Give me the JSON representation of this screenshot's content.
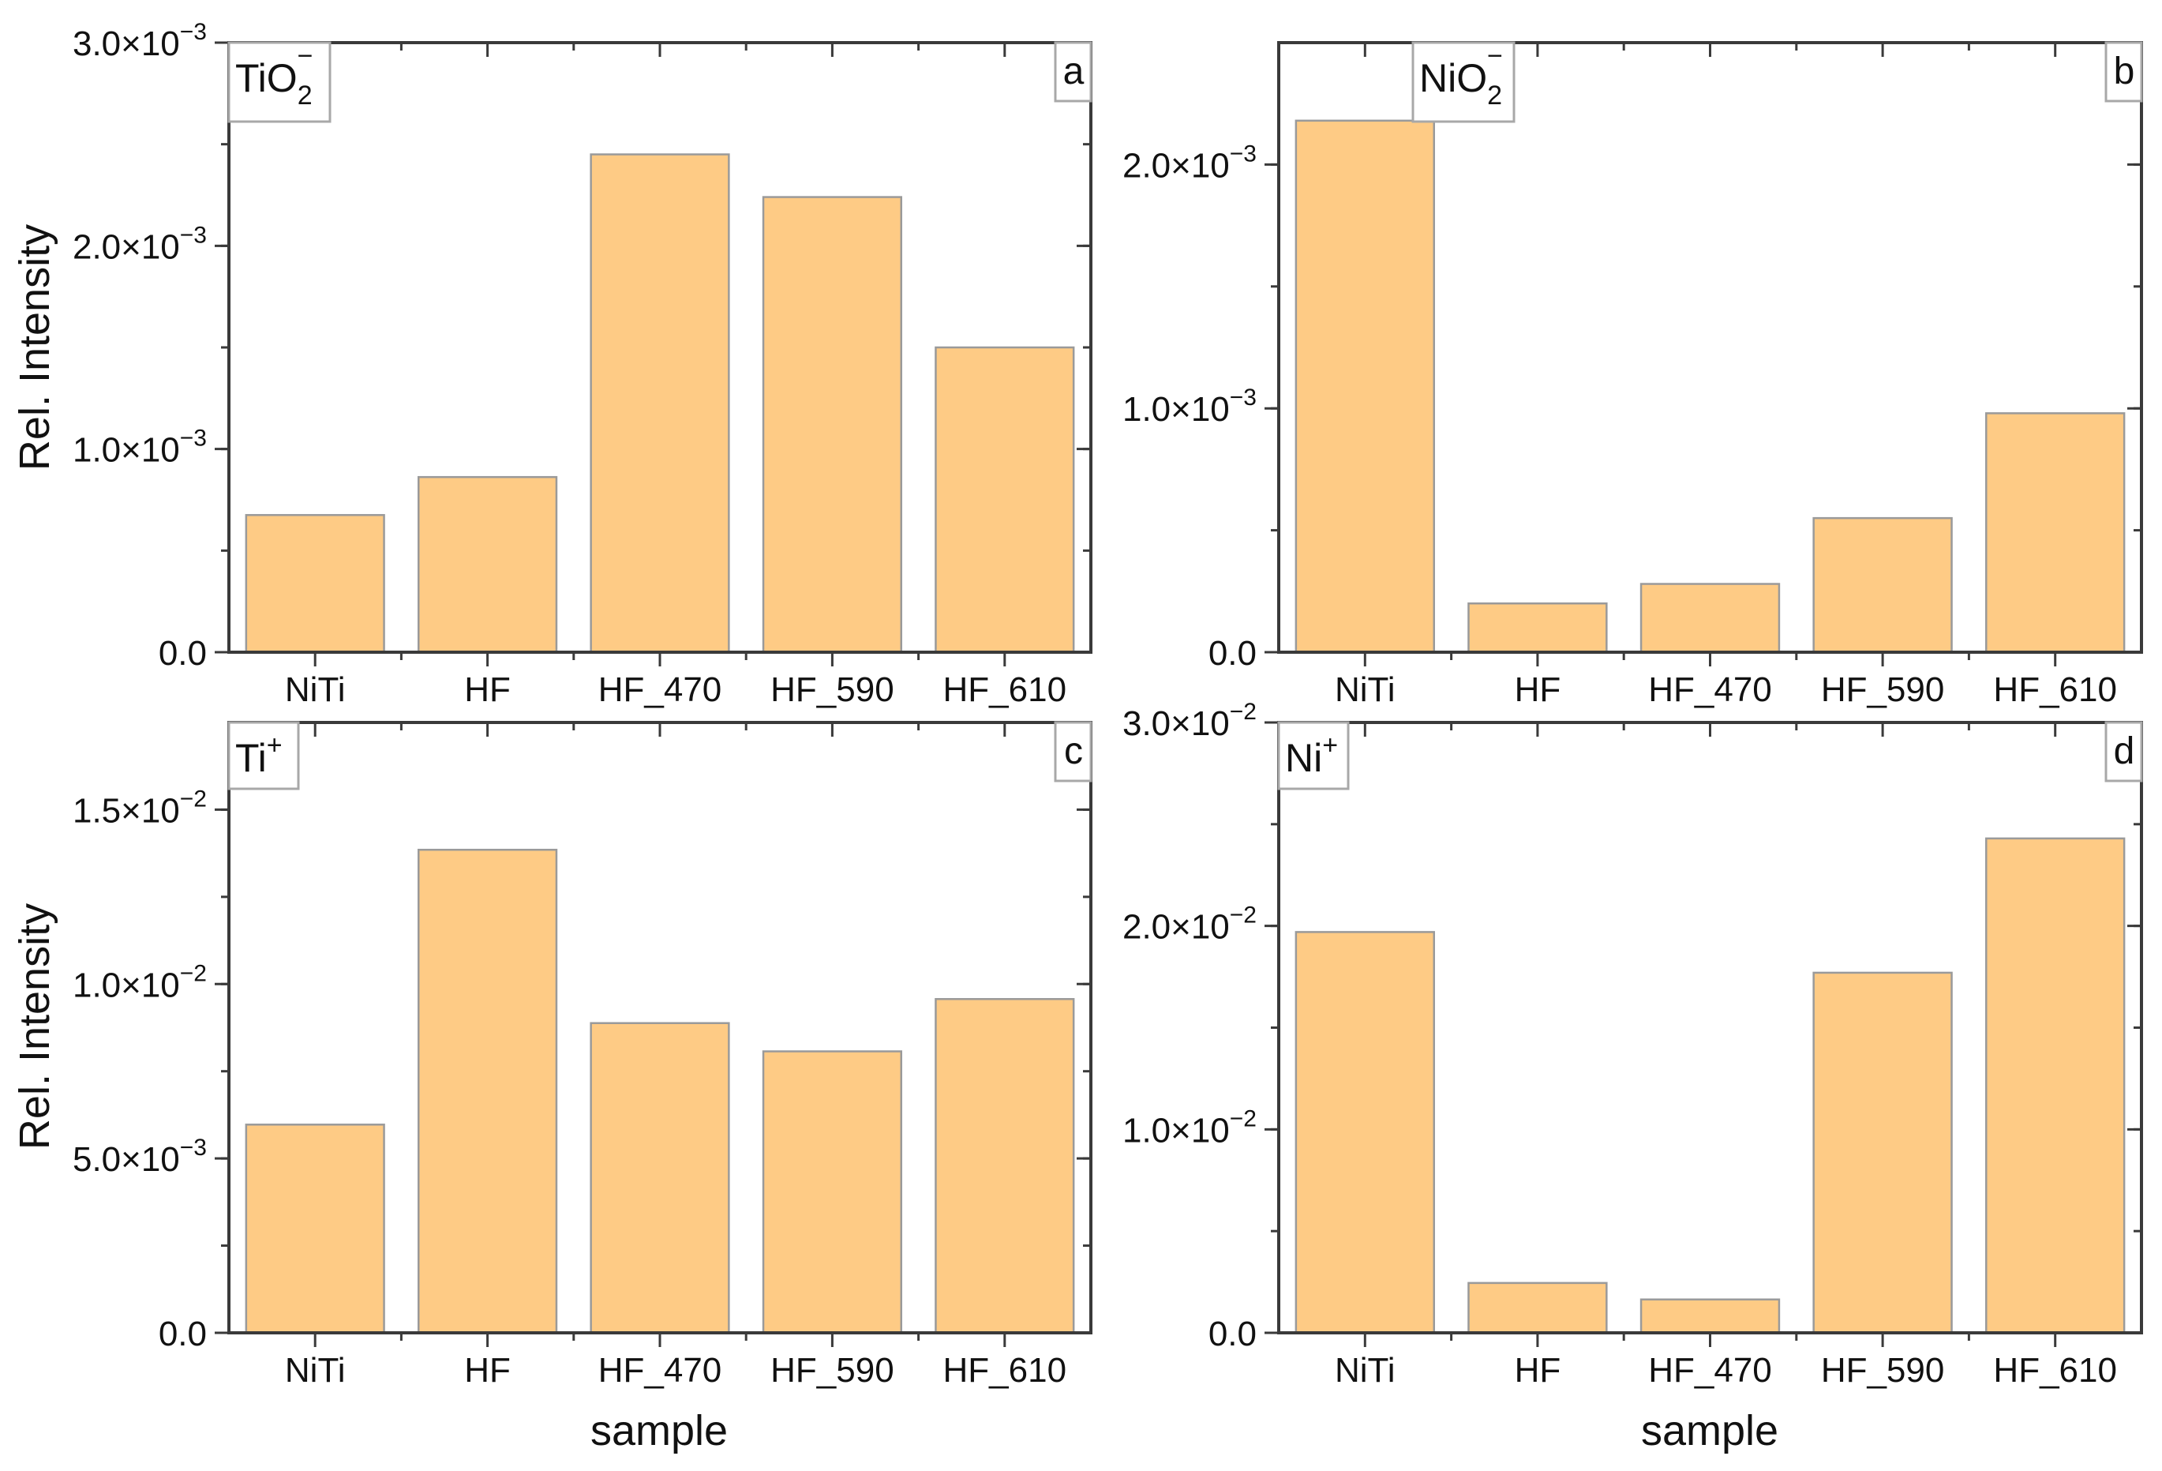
{
  "figure": {
    "shared_y_label": "Rel. Intensity",
    "shared_x_label": "sample",
    "bar_fill": "#FECB85",
    "bar_stroke": "#9A9A9A",
    "axis_color": "#3A3A3A"
  },
  "chart_data": [
    {
      "type": "bar",
      "panel": "a",
      "title": "TiO2-",
      "ion": {
        "base": "TiO",
        "sub": "2",
        "sup": "−"
      },
      "categories": [
        "NiTi",
        "HF",
        "HF_470",
        "HF_590",
        "HF_610"
      ],
      "values": [
        0.000675,
        0.000862,
        0.00245,
        0.00224,
        0.0015
      ],
      "xlabel": "",
      "ylabel": "Rel. Intensity",
      "ylim": [
        0,
        0.003
      ],
      "yticks": [
        {
          "value": 0,
          "mant": "0.0",
          "exp": ""
        },
        {
          "value": 0.001,
          "mant": "1.0×10",
          "exp": "−3"
        },
        {
          "value": 0.002,
          "mant": "2.0×10",
          "exp": "−3"
        },
        {
          "value": 0.003,
          "mant": "3.0×10",
          "exp": "−3"
        }
      ],
      "minor_step": 0.0005,
      "grid": false,
      "legend": null
    },
    {
      "type": "bar",
      "panel": "b",
      "title": "NiO2-",
      "ion": {
        "base": "NiO",
        "sub": "2",
        "sup": "−"
      },
      "categories": [
        "NiTi",
        "HF",
        "HF_470",
        "HF_590",
        "HF_610"
      ],
      "values": [
        0.00218,
        0.0002,
        0.00028,
        0.00055,
        0.00098
      ],
      "xlabel": "",
      "ylabel": "",
      "ylim": [
        0,
        0.0025
      ],
      "yticks": [
        {
          "value": 0,
          "mant": "0.0",
          "exp": ""
        },
        {
          "value": 0.001,
          "mant": "1.0×10",
          "exp": "−3"
        },
        {
          "value": 0.002,
          "mant": "2.0×10",
          "exp": "−3"
        }
      ],
      "minor_step": 0.0005,
      "grid": false,
      "legend": null
    },
    {
      "type": "bar",
      "panel": "c",
      "title": "Ti+",
      "ion": {
        "base": "Ti",
        "sub": "",
        "sup": "+"
      },
      "categories": [
        "NiTi",
        "HF",
        "HF_470",
        "HF_590",
        "HF_610"
      ],
      "values": [
        0.00597,
        0.01385,
        0.00888,
        0.00807,
        0.00957
      ],
      "xlabel": "sample",
      "ylabel": "Rel. Intensity",
      "ylim": [
        0,
        0.0175
      ],
      "yticks": [
        {
          "value": 0,
          "mant": "0.0",
          "exp": ""
        },
        {
          "value": 0.005,
          "mant": "5.0×10",
          "exp": "−3"
        },
        {
          "value": 0.01,
          "mant": "1.0×10",
          "exp": "−2"
        },
        {
          "value": 0.015,
          "mant": "1.5×10",
          "exp": "−2"
        }
      ],
      "minor_step": 0.0025,
      "grid": false,
      "legend": null
    },
    {
      "type": "bar",
      "panel": "d",
      "title": "Ni+",
      "ion": {
        "base": "Ni",
        "sub": "",
        "sup": "+"
      },
      "categories": [
        "NiTi",
        "HF",
        "HF_470",
        "HF_590",
        "HF_610"
      ],
      "values": [
        0.0197,
        0.00245,
        0.00164,
        0.0177,
        0.0243
      ],
      "xlabel": "sample",
      "ylabel": "",
      "ylim": [
        0,
        0.03
      ],
      "yticks": [
        {
          "value": 0,
          "mant": "0.0",
          "exp": ""
        },
        {
          "value": 0.01,
          "mant": "1.0×10",
          "exp": "−2"
        },
        {
          "value": 0.02,
          "mant": "2.0×10",
          "exp": "−2"
        },
        {
          "value": 0.03,
          "mant": "3.0×10",
          "exp": "−2"
        }
      ],
      "minor_step": 0.005,
      "grid": false,
      "legend": null
    }
  ]
}
